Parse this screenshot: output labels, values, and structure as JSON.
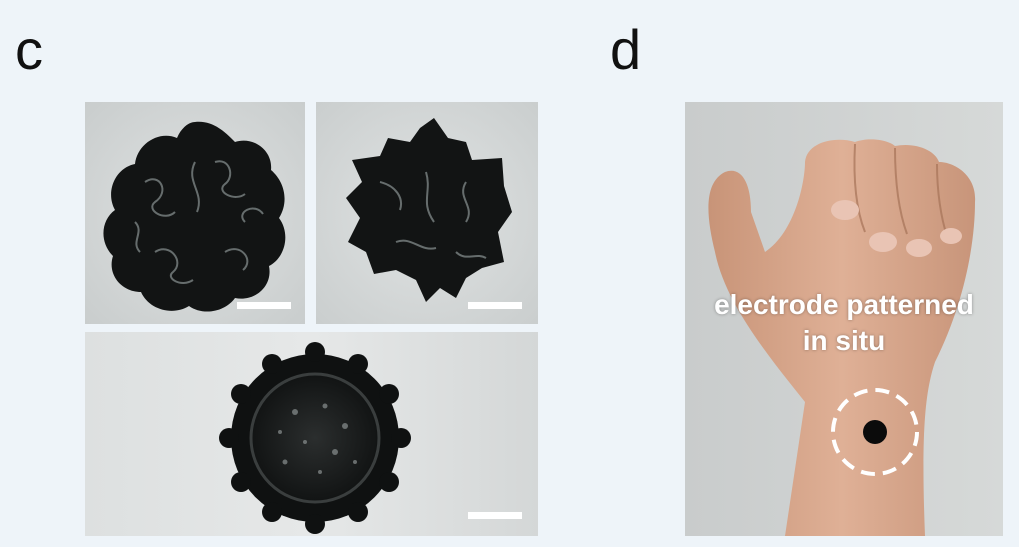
{
  "panels": {
    "c": {
      "letter": "c"
    },
    "d": {
      "letter": "d",
      "annotation_line1": "electrode patterned",
      "annotation_line2": "in situ"
    }
  }
}
